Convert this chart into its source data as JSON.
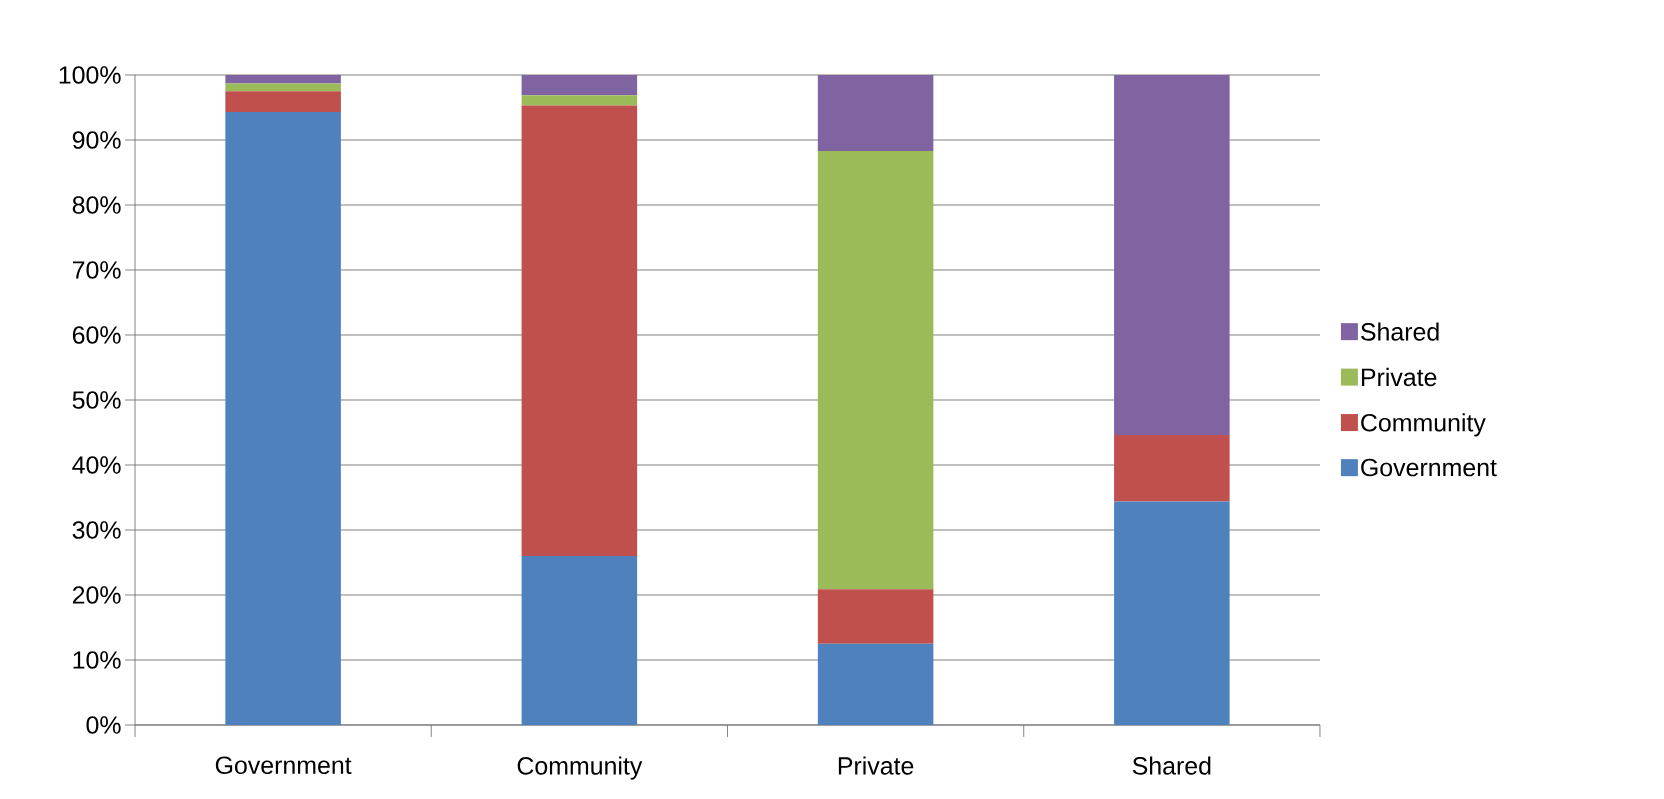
{
  "chart_data": {
    "type": "bar",
    "stacked": true,
    "categories": [
      "Government",
      "Community",
      "Private",
      "Shared"
    ],
    "series": [
      {
        "name": "Government",
        "color": "#4f81bd",
        "values": [
          94.3,
          26,
          12.5,
          34.4
        ]
      },
      {
        "name": "Community",
        "color": "#c0504d",
        "values": [
          3.2,
          69.3,
          8.4,
          10.2
        ]
      },
      {
        "name": "Private",
        "color": "#9bbb59",
        "values": [
          1.2,
          1.6,
          67.4,
          0
        ]
      },
      {
        "name": "Shared",
        "color": "#8064a2",
        "values": [
          1.3,
          3.1,
          11.7,
          55.4
        ]
      }
    ],
    "ylim": [
      0,
      100
    ],
    "yticks": [
      {
        "value": 0,
        "label": "0%"
      },
      {
        "value": 10,
        "label": "10%"
      },
      {
        "value": 20,
        "label": "20%"
      },
      {
        "value": 30,
        "label": "30%"
      },
      {
        "value": 40,
        "label": "40%"
      },
      {
        "value": 50,
        "label": "50%"
      },
      {
        "value": 60,
        "label": "60%"
      },
      {
        "value": 70,
        "label": "70%"
      },
      {
        "value": 80,
        "label": "80%"
      },
      {
        "value": 90,
        "label": "90%"
      },
      {
        "value": 100,
        "label": "100%"
      }
    ],
    "grid": "y",
    "legend": "right"
  }
}
